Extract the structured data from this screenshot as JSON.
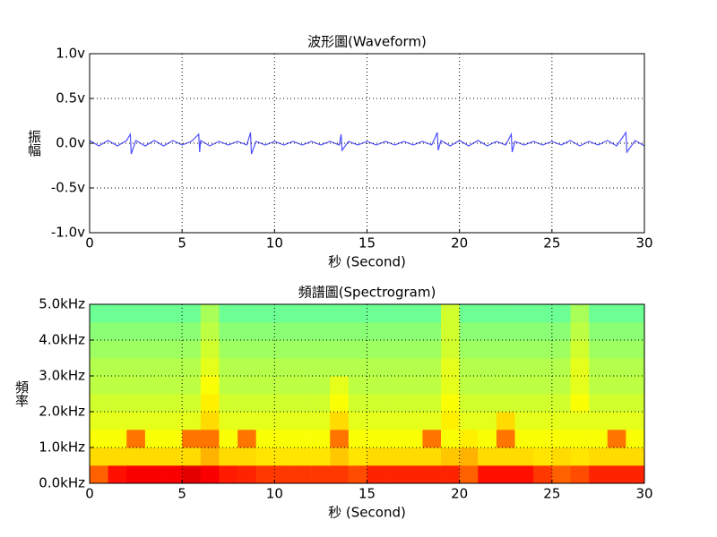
{
  "chart_data": [
    {
      "type": "line",
      "title": "波形圖(Waveform)",
      "xlabel": "秒 (Second)",
      "ylabel": "振幅",
      "x": [
        0,
        0.5,
        1,
        1.5,
        2,
        2.2,
        2.25,
        2.5,
        3,
        3.5,
        4,
        4.5,
        5,
        5.5,
        5.9,
        5.95,
        6,
        6.5,
        7,
        7.5,
        8,
        8.5,
        8.7,
        8.75,
        9,
        9.5,
        10,
        10.5,
        11,
        11.5,
        12,
        12.5,
        13,
        13.5,
        13.6,
        13.65,
        14,
        14.5,
        15,
        15.5,
        16,
        16.5,
        17,
        17.5,
        18,
        18.5,
        18.8,
        18.85,
        19,
        19.5,
        20,
        20.5,
        21,
        21.5,
        22,
        22.5,
        22.8,
        22.85,
        23,
        23.5,
        24,
        24.5,
        25,
        25.5,
        26,
        26.5,
        27,
        27.5,
        28,
        28.5,
        29,
        29.05,
        29.5,
        30
      ],
      "values": [
        0.03,
        -0.03,
        0.03,
        -0.03,
        0.03,
        0.1,
        -0.12,
        0.03,
        -0.03,
        0.03,
        -0.03,
        0.03,
        -0.02,
        0.02,
        0.1,
        -0.1,
        0.03,
        -0.03,
        0.02,
        -0.02,
        0.02,
        -0.02,
        0.12,
        -0.12,
        0.02,
        -0.02,
        0.02,
        -0.02,
        0.02,
        -0.02,
        0.02,
        -0.02,
        0.02,
        -0.02,
        0.1,
        -0.08,
        0.02,
        -0.02,
        0.02,
        -0.02,
        0.02,
        -0.02,
        0.02,
        -0.02,
        0.02,
        -0.02,
        0.12,
        -0.08,
        0.03,
        -0.03,
        0.03,
        -0.03,
        0.03,
        -0.03,
        0.02,
        -0.02,
        0.1,
        -0.1,
        0.02,
        -0.02,
        0.02,
        -0.02,
        0.02,
        -0.02,
        0.03,
        -0.03,
        0.02,
        -0.02,
        0.03,
        -0.03,
        0.12,
        -0.1,
        0.03,
        -0.03
      ],
      "color": "#4f4fff",
      "xlim": [
        0,
        30
      ],
      "xticks": [
        0,
        5,
        10,
        15,
        20,
        25,
        30
      ],
      "ylim": [
        -1,
        1
      ],
      "yticks": [
        {
          "value": -1,
          "label": "-1.0v"
        },
        {
          "value": -0.5,
          "label": "-0.5v"
        },
        {
          "value": 0,
          "label": "0.0v"
        },
        {
          "value": 0.5,
          "label": "0.5v"
        },
        {
          "value": 1,
          "label": "1.0v"
        }
      ],
      "grid": true
    },
    {
      "type": "spectrogram",
      "title": "頻譜圖(Spectrogram)",
      "xlabel": "秒 (Second)",
      "ylabel": "頻率",
      "colormap": "jet",
      "xbins": [
        0,
        1,
        2,
        3,
        4,
        5,
        6,
        7,
        8,
        9,
        10,
        11,
        12,
        13,
        14,
        15,
        16,
        17,
        18,
        19,
        20,
        21,
        22,
        23,
        24,
        25,
        26,
        27,
        28,
        29,
        30
      ],
      "ybins": [
        0,
        0.5,
        1,
        1.5,
        2,
        2.5,
        3,
        3.5,
        4,
        4.5,
        5
      ],
      "z": [
        [
          0.78,
          0.86,
          0.88,
          0.88,
          0.88,
          0.9,
          0.88,
          0.85,
          0.84,
          0.82,
          0.82,
          0.82,
          0.82,
          0.82,
          0.8,
          0.84,
          0.84,
          0.84,
          0.84,
          0.84,
          0.78,
          0.86,
          0.86,
          0.86,
          0.82,
          0.78,
          0.8,
          0.84,
          0.84,
          0.84
        ],
        [
          0.66,
          0.66,
          0.66,
          0.66,
          0.66,
          0.66,
          0.7,
          0.66,
          0.66,
          0.65,
          0.65,
          0.65,
          0.65,
          0.68,
          0.65,
          0.66,
          0.66,
          0.66,
          0.66,
          0.68,
          0.7,
          0.66,
          0.66,
          0.66,
          0.65,
          0.66,
          0.65,
          0.66,
          0.66,
          0.66
        ],
        [
          0.62,
          0.62,
          0.76,
          0.62,
          0.62,
          0.76,
          0.76,
          0.62,
          0.76,
          0.62,
          0.62,
          0.62,
          0.62,
          0.76,
          0.62,
          0.62,
          0.62,
          0.62,
          0.76,
          0.62,
          0.64,
          0.62,
          0.76,
          0.62,
          0.62,
          0.62,
          0.62,
          0.62,
          0.76,
          0.62
        ],
        [
          0.6,
          0.6,
          0.6,
          0.6,
          0.6,
          0.6,
          0.66,
          0.6,
          0.6,
          0.6,
          0.6,
          0.6,
          0.6,
          0.66,
          0.6,
          0.6,
          0.6,
          0.6,
          0.6,
          0.64,
          0.6,
          0.6,
          0.66,
          0.6,
          0.6,
          0.6,
          0.6,
          0.6,
          0.6,
          0.6
        ],
        [
          0.58,
          0.58,
          0.58,
          0.58,
          0.58,
          0.58,
          0.64,
          0.58,
          0.58,
          0.58,
          0.58,
          0.58,
          0.58,
          0.62,
          0.58,
          0.58,
          0.58,
          0.58,
          0.58,
          0.62,
          0.58,
          0.58,
          0.58,
          0.58,
          0.58,
          0.58,
          0.62,
          0.58,
          0.58,
          0.58
        ],
        [
          0.56,
          0.56,
          0.56,
          0.56,
          0.56,
          0.56,
          0.62,
          0.56,
          0.56,
          0.56,
          0.56,
          0.56,
          0.56,
          0.6,
          0.56,
          0.56,
          0.56,
          0.56,
          0.56,
          0.6,
          0.56,
          0.56,
          0.56,
          0.56,
          0.56,
          0.56,
          0.6,
          0.56,
          0.56,
          0.56
        ],
        [
          0.55,
          0.55,
          0.55,
          0.55,
          0.55,
          0.55,
          0.6,
          0.55,
          0.55,
          0.55,
          0.55,
          0.55,
          0.55,
          0.55,
          0.55,
          0.55,
          0.55,
          0.55,
          0.55,
          0.6,
          0.55,
          0.55,
          0.55,
          0.55,
          0.55,
          0.55,
          0.6,
          0.55,
          0.55,
          0.55
        ],
        [
          0.53,
          0.53,
          0.53,
          0.53,
          0.53,
          0.53,
          0.58,
          0.53,
          0.53,
          0.53,
          0.53,
          0.53,
          0.53,
          0.53,
          0.53,
          0.53,
          0.53,
          0.53,
          0.53,
          0.58,
          0.53,
          0.53,
          0.53,
          0.53,
          0.53,
          0.53,
          0.58,
          0.53,
          0.53,
          0.53
        ],
        [
          0.51,
          0.51,
          0.51,
          0.51,
          0.51,
          0.51,
          0.56,
          0.51,
          0.51,
          0.51,
          0.51,
          0.51,
          0.51,
          0.51,
          0.51,
          0.51,
          0.51,
          0.51,
          0.51,
          0.58,
          0.51,
          0.51,
          0.51,
          0.51,
          0.51,
          0.51,
          0.56,
          0.51,
          0.51,
          0.51
        ],
        [
          0.48,
          0.48,
          0.48,
          0.48,
          0.48,
          0.48,
          0.54,
          0.48,
          0.48,
          0.48,
          0.48,
          0.48,
          0.48,
          0.48,
          0.48,
          0.48,
          0.48,
          0.48,
          0.48,
          0.58,
          0.48,
          0.48,
          0.48,
          0.48,
          0.48,
          0.48,
          0.54,
          0.48,
          0.48,
          0.48
        ]
      ],
      "xlim": [
        0,
        30
      ],
      "xticks": [
        0,
        5,
        10,
        15,
        20,
        25,
        30
      ],
      "ylim": [
        0,
        5
      ],
      "yticks": [
        {
          "value": 0,
          "label": "0.0kHz"
        },
        {
          "value": 1,
          "label": "1.0kHz"
        },
        {
          "value": 2,
          "label": "2.0kHz"
        },
        {
          "value": 3,
          "label": "3.0kHz"
        },
        {
          "value": 4,
          "label": "4.0kHz"
        },
        {
          "value": 5,
          "label": "5.0kHz"
        }
      ],
      "grid": true
    }
  ]
}
